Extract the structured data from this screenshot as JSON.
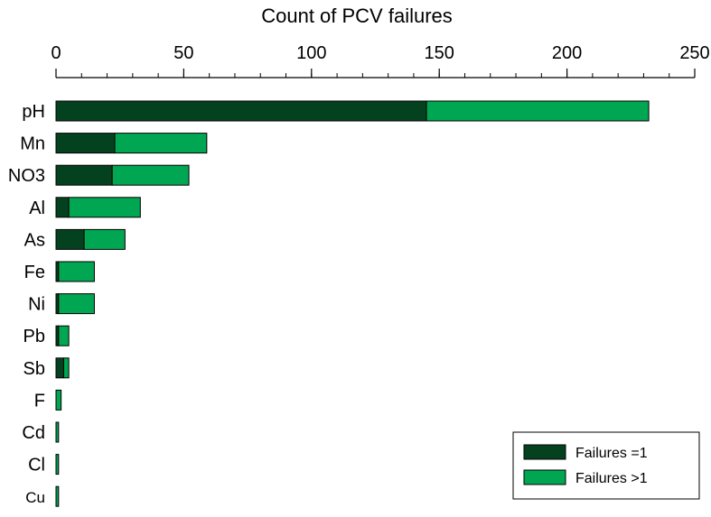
{
  "chart_data": {
    "type": "bar",
    "orientation": "horizontal",
    "stacked": true,
    "title": "",
    "xlabel": "Count of PCV failures",
    "ylabel": "",
    "xlim": [
      0,
      250
    ],
    "x_ticks": [
      0,
      50,
      100,
      150,
      200,
      250
    ],
    "x_minor_step": 10,
    "x_axis_position": "top",
    "grid": false,
    "legend_position": "bottom-right",
    "categories": [
      "pH",
      "Mn",
      "NO3",
      "Al",
      "As",
      "Fe",
      "Ni",
      "Pb",
      "Sb",
      "F",
      "Cd",
      "Cl",
      "Cu"
    ],
    "series": [
      {
        "name": "Failures =1",
        "color": "#04421f",
        "values": [
          145,
          23,
          22,
          5,
          11,
          1,
          1,
          1,
          3,
          0,
          0,
          0,
          0
        ]
      },
      {
        "name": "Failures >1",
        "color": "#00a651",
        "values": [
          87,
          36,
          30,
          28,
          16,
          14,
          14,
          4,
          2,
          2,
          1,
          1,
          1
        ]
      }
    ]
  }
}
